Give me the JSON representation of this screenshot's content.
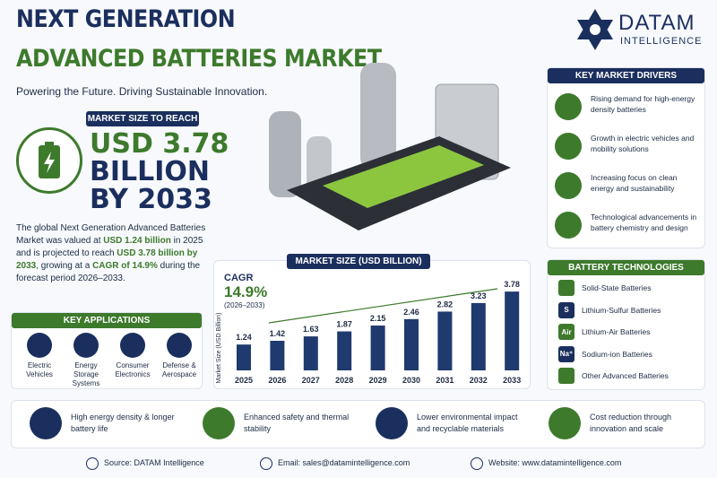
{
  "header": {
    "title_line1": "NEXT GENERATION",
    "title_line2": "ADVANCED BATTERIES MARKET",
    "tagline": "Powering the Future. Driving Sustainable Innovation.",
    "brand": "DATAM",
    "brand_sub": "INTELLIGENCE"
  },
  "market_size": {
    "badge": "MARKET SIZE TO REACH",
    "line1": "USD 3.78",
    "line2": "BILLION",
    "line3": "BY 2033"
  },
  "summary": [
    "The global Next Generation Advanced Batteries Market was valued at ",
    "USD 1.24 billion",
    " in 2025 and is projected to reach ",
    "USD 3.78 billion by 2033",
    ", growing at a ",
    "CAGR of 14.9%",
    " during the forecast period 2026–2033."
  ],
  "key_applications": {
    "title": "KEY APPLICATIONS",
    "items": [
      "Electric Vehicles",
      "Energy Storage Systems",
      "Consumer Electronics",
      "Defense & Aerospace"
    ]
  },
  "chart_data": {
    "type": "bar",
    "title": "MARKET SIZE (USD BILLION)",
    "y_label": "Market Size (USD Billion)",
    "cagr_label": "CAGR",
    "cagr_value": "14.9%",
    "cagr_period": "(2026–2033)",
    "categories": [
      "2025",
      "2026",
      "2027",
      "2028",
      "2029",
      "2030",
      "2031",
      "2032",
      "2033"
    ],
    "values": [
      1.24,
      1.42,
      1.63,
      1.87,
      2.15,
      2.46,
      2.82,
      3.23,
      3.78
    ],
    "color": "#1f3a6e",
    "ylim": [
      0,
      4
    ]
  },
  "drivers": {
    "title": "KEY MARKET DRIVERS",
    "items": [
      "Rising demand for high-energy density batteries",
      "Growth in electric vehicles and mobility solutions",
      "Increasing focus on clean energy and sustainability",
      "Technological advancements in battery chemistry and design"
    ]
  },
  "technologies": {
    "title": "BATTERY TECHNOLOGIES",
    "items": [
      {
        "label": "Solid-State Batteries"
      },
      {
        "icon": "S",
        "label": "Lithium-Sulfur Batteries"
      },
      {
        "icon": "Air",
        "label": "Lithium-Air Batteries"
      },
      {
        "icon": "Na⁺",
        "label": "Sodium-ion Batteries"
      },
      {
        "label": "Other Advanced Batteries"
      }
    ]
  },
  "benefits": [
    "High energy density & longer battery life",
    "Enhanced safety and thermal stability",
    "Lower environmental impact and recyclable materials",
    "Cost reduction through innovation and scale"
  ],
  "footer": [
    "Source: DATAM Intelligence",
    "Email: sales@datamintelligence.com",
    "Website: www.datamintelligence.com"
  ]
}
